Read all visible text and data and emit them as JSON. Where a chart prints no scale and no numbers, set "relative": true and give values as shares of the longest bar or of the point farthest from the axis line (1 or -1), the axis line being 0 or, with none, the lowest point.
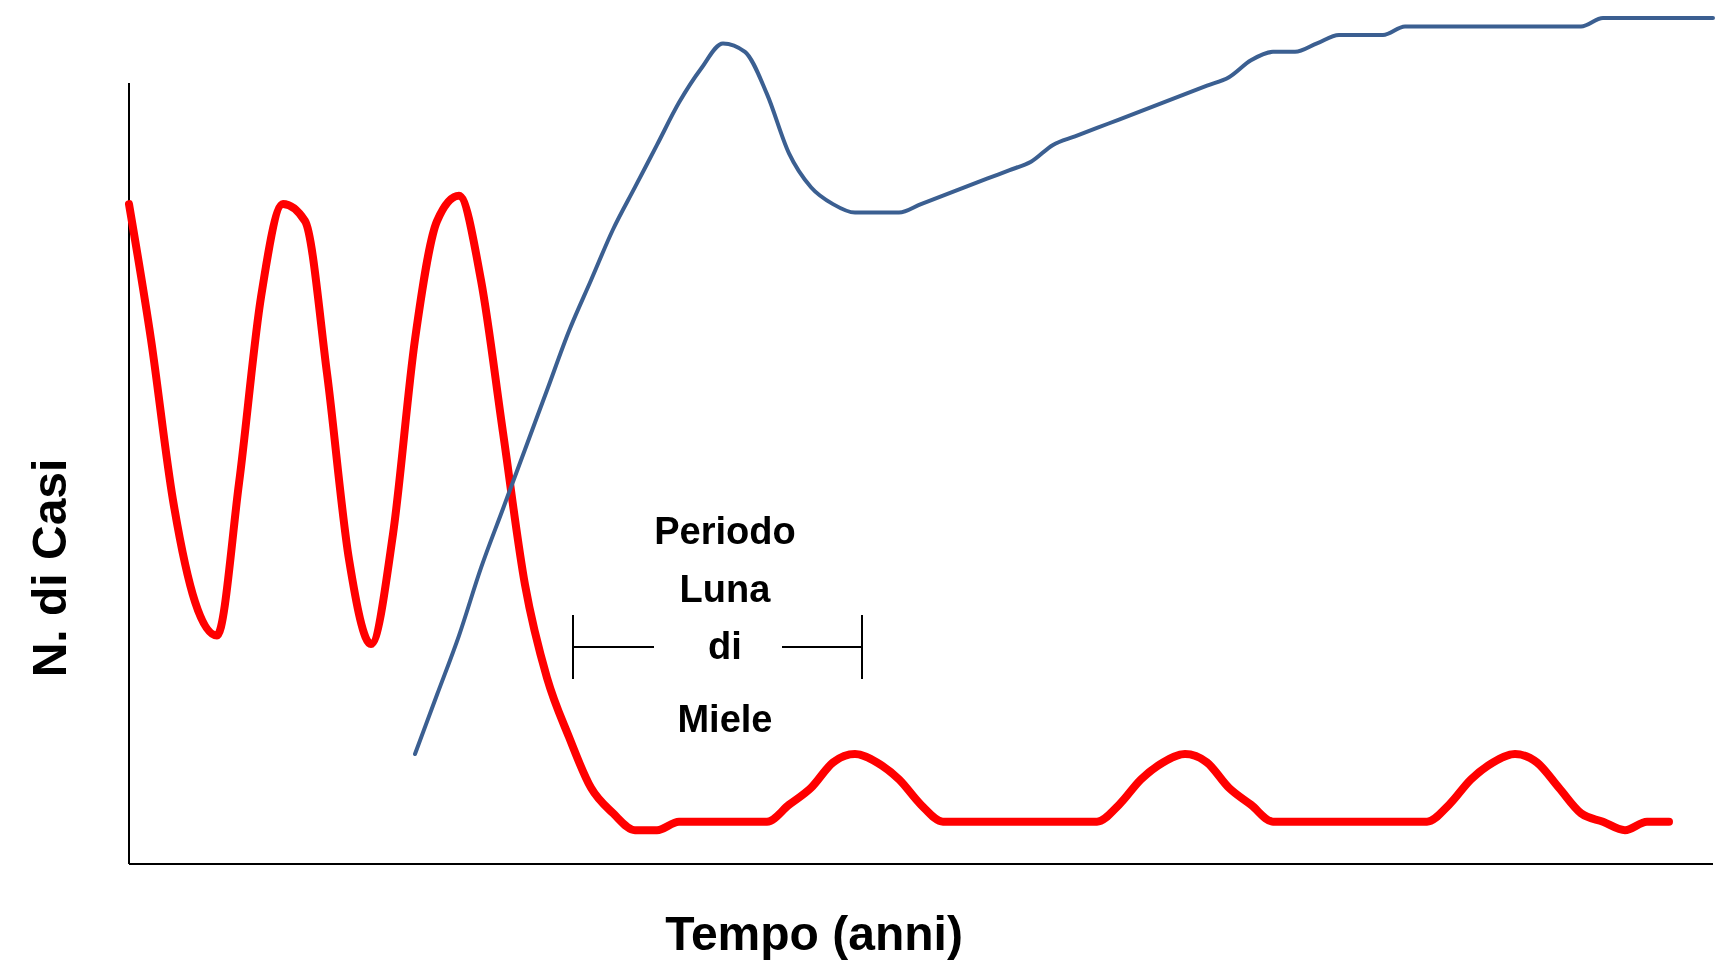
{
  "chart_data": {
    "type": "line",
    "relative": true,
    "xlabel": "Tempo (anni)",
    "ylabel": "N. di Casi",
    "categories": [
      null,
      null,
      null,
      null,
      null,
      null,
      null,
      null,
      null,
      null,
      null,
      null,
      null,
      null,
      null,
      null,
      null,
      null,
      null,
      null,
      null,
      null,
      null,
      null,
      null,
      null,
      null,
      null,
      null,
      null,
      null,
      null,
      null,
      null,
      null,
      null,
      null,
      null,
      null,
      null,
      null,
      null,
      null,
      null,
      null,
      null,
      null,
      null,
      null,
      null,
      null,
      null,
      null,
      null,
      null,
      null,
      null,
      null,
      null,
      null,
      null,
      null,
      null,
      null,
      null,
      null,
      null,
      null,
      null,
      null,
      null,
      null,
      null
    ],
    "series": [
      {
        "color": "#ff0000",
        "values": [
          0.78,
          0.62,
          0.43,
          0.31,
          0.27,
          0.45,
          0.67,
          0.78,
          0.76,
          0.58,
          0.36,
          0.26,
          0.39,
          0.62,
          0.76,
          0.79,
          0.69,
          0.51,
          0.33,
          0.22,
          0.15,
          0.09,
          0.06,
          0.04,
          0.04,
          0.05,
          0.05,
          0.05,
          0.05,
          0.05,
          0.07,
          0.09,
          0.12,
          0.13,
          0.12,
          0.1,
          0.07,
          0.05,
          0.05,
          0.05,
          0.05,
          0.05,
          0.05,
          0.05,
          0.05,
          0.07,
          0.1,
          0.12,
          0.13,
          0.12,
          0.09,
          0.07,
          0.05,
          0.05,
          0.05,
          0.05,
          0.05,
          0.05,
          0.05,
          0.05,
          0.07,
          0.1,
          0.12,
          0.13,
          0.12,
          0.09,
          0.06,
          0.05,
          0.04,
          0.05,
          0.05,
          null,
          null
        ]
      },
      {
        "color": "#3b5f91",
        "values": [
          null,
          null,
          null,
          null,
          null,
          null,
          null,
          null,
          null,
          null,
          null,
          null,
          null,
          0.13,
          0.2,
          0.27,
          0.35,
          0.42,
          0.49,
          0.56,
          0.63,
          0.69,
          0.75,
          0.8,
          0.85,
          0.9,
          0.94,
          0.97,
          0.96,
          0.91,
          0.84,
          0.8,
          0.78,
          0.77,
          0.77,
          0.77,
          0.78,
          0.79,
          0.8,
          0.81,
          0.82,
          0.83,
          0.85,
          0.86,
          0.87,
          0.88,
          0.89,
          0.9,
          0.91,
          0.92,
          0.93,
          0.95,
          0.96,
          0.96,
          0.97,
          0.98,
          0.98,
          0.98,
          0.99,
          0.99,
          0.99,
          0.99,
          0.99,
          0.99,
          0.99,
          0.99,
          0.99,
          1.0,
          1.0,
          1.0,
          1.0,
          1.0,
          1.0
        ]
      }
    ],
    "annotations": [
      "Periodo Luna di Miele"
    ]
  }
}
